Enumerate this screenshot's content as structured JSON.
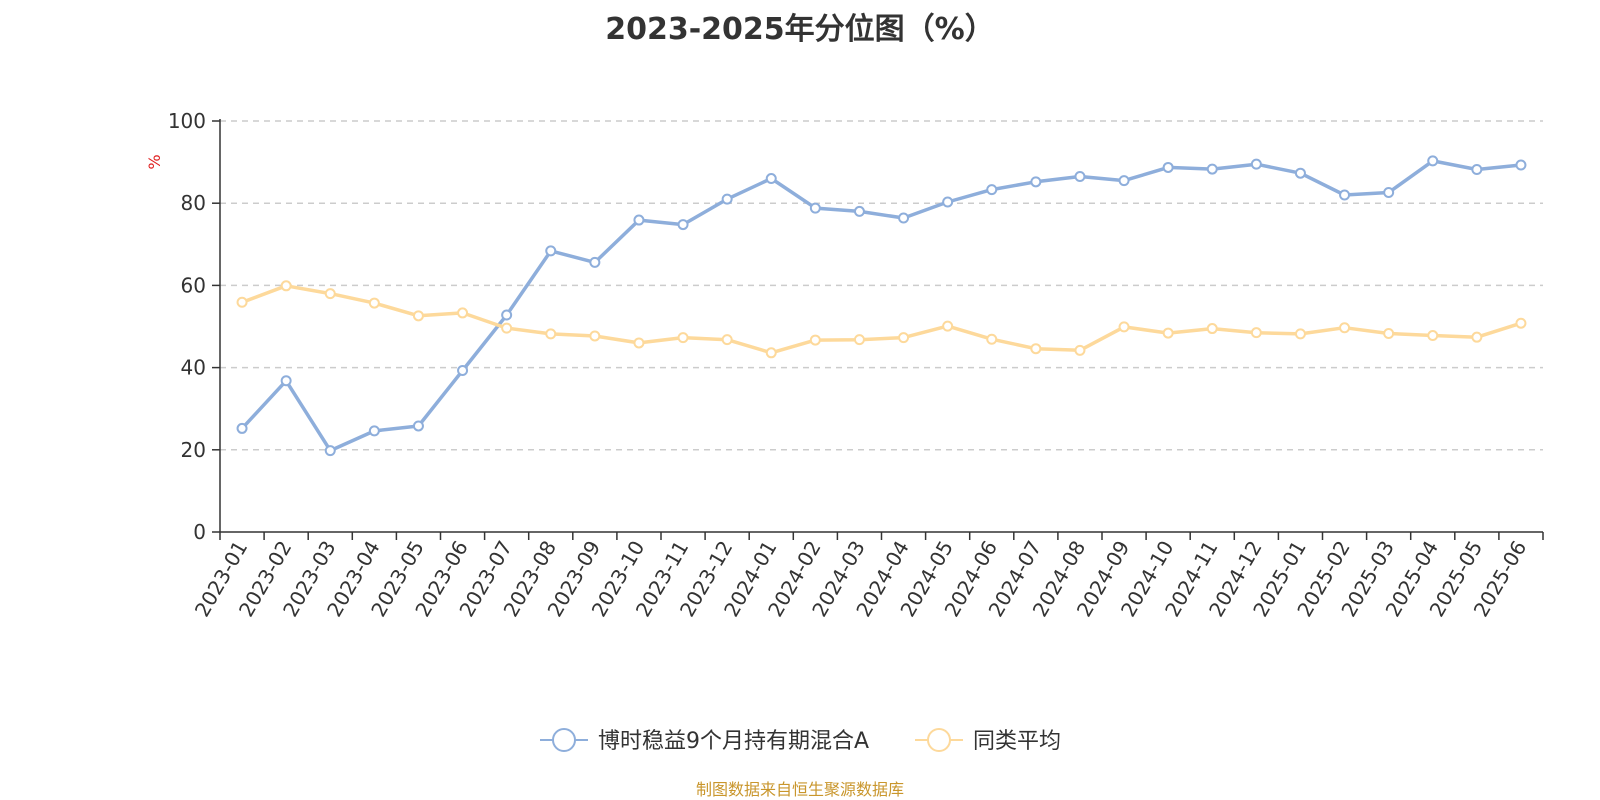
{
  "chart_data": {
    "type": "line",
    "title": "2023-2025年分位图（%）",
    "ylabel": "%",
    "xlabel": "",
    "ylim": [
      0,
      100
    ],
    "yticks": [
      0,
      20,
      40,
      60,
      80,
      100
    ],
    "grid": true,
    "legend_position": "bottom",
    "categories": [
      "2023-01",
      "2023-02",
      "2023-03",
      "2023-04",
      "2023-05",
      "2023-06",
      "2023-07",
      "2023-08",
      "2023-09",
      "2023-10",
      "2023-11",
      "2023-12",
      "2024-01",
      "2024-02",
      "2024-03",
      "2024-04",
      "2024-05",
      "2024-06",
      "2024-07",
      "2024-08",
      "2024-09",
      "2024-10",
      "2024-11",
      "2024-12",
      "2025-01",
      "2025-02",
      "2025-03",
      "2025-04",
      "2025-05",
      "2025-06"
    ],
    "series": [
      {
        "name": "博时稳益9个月持有期混合A",
        "color": "#8eaedb",
        "values": [
          25.2,
          36.8,
          19.8,
          24.6,
          25.8,
          39.3,
          52.8,
          68.4,
          65.6,
          75.9,
          74.8,
          81.0,
          86.0,
          78.8,
          78.0,
          76.4,
          80.3,
          83.3,
          85.2,
          86.5,
          85.5,
          88.7,
          88.3,
          89.5,
          87.3,
          82.0,
          82.6,
          90.3,
          88.2,
          89.3
        ]
      },
      {
        "name": "同类平均",
        "color": "#fdd99b",
        "values": [
          55.9,
          59.9,
          58.0,
          55.7,
          52.6,
          53.3,
          49.6,
          48.2,
          47.7,
          46.0,
          47.3,
          46.8,
          43.6,
          46.7,
          46.8,
          47.3,
          50.1,
          46.9,
          44.6,
          44.2,
          49.9,
          48.4,
          49.5,
          48.5,
          48.2,
          49.7,
          48.3,
          47.8,
          47.4,
          50.8
        ]
      }
    ]
  },
  "source_note": {
    "text": "制图数据来自恒生聚源数据库",
    "color": "#c9962c"
  },
  "colors": {
    "axis": "#333333",
    "grid": "#cccccc",
    "ylabel": "#e02020"
  }
}
